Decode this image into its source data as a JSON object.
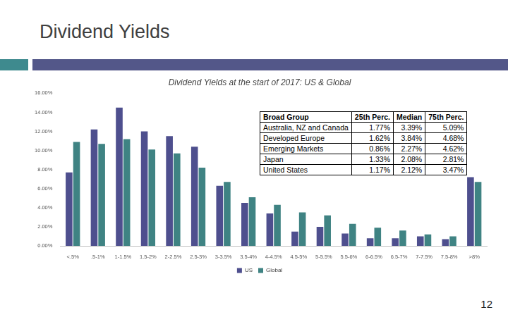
{
  "slide": {
    "title": "Dividend Yields",
    "page_number": "12"
  },
  "chart_data": {
    "type": "bar",
    "title": "Dividend Yields at the start of 2017: US & Global",
    "categories": [
      "<.5%",
      ".5-1%",
      "1-1.5%",
      "1.5-2%",
      "2-2.5%",
      "2.5-3%",
      "3-3.5%",
      "3.5-4%",
      "4-4.5%",
      "4.5-5%",
      "5-5.5%",
      "5.5-6%",
      "6-6.5%",
      "6.5-7%",
      "7-7.5%",
      "7.5-8%",
      ">8%"
    ],
    "series": [
      {
        "name": "US",
        "color": "#4e4f8e",
        "values": [
          7.7,
          12.2,
          14.5,
          12.0,
          11.5,
          10.4,
          6.3,
          4.5,
          3.4,
          1.5,
          2.0,
          1.3,
          0.8,
          0.8,
          1.0,
          0.7,
          7.2
        ]
      },
      {
        "name": "Global",
        "color": "#3f8383",
        "values": [
          10.9,
          10.7,
          11.2,
          10.1,
          9.7,
          8.2,
          6.7,
          5.1,
          4.3,
          3.5,
          3.2,
          2.3,
          1.9,
          1.6,
          1.2,
          1.0,
          6.7
        ]
      }
    ],
    "ylim": [
      0,
      16
    ],
    "yticks": [
      {
        "value": 0,
        "label": "0.00%"
      },
      {
        "value": 2,
        "label": "2.00%"
      },
      {
        "value": 4,
        "label": "4.00%"
      },
      {
        "value": 6,
        "label": "6.00%"
      },
      {
        "value": 8,
        "label": "8.00%"
      },
      {
        "value": 10,
        "label": "10.00%"
      },
      {
        "value": 12,
        "label": "12.00%"
      },
      {
        "value": 14,
        "label": "14.00%"
      },
      {
        "value": 16,
        "label": "16.00%"
      }
    ],
    "grid": false,
    "legend": "bottom"
  },
  "table": {
    "columns": [
      "Broad Group",
      "25th Perc.",
      "Median",
      "75th Perc."
    ],
    "rows": [
      [
        "Australia, NZ and Canada",
        "1.77%",
        "3.39%",
        "5.09%"
      ],
      [
        "Developed Europe",
        "1.62%",
        "3.84%",
        "4.68%"
      ],
      [
        "Emerging Markets",
        "0.86%",
        "2.27%",
        "4.62%"
      ],
      [
        "Japan",
        "1.33%",
        "2.08%",
        "2.81%"
      ],
      [
        "United States",
        "1.17%",
        "2.12%",
        "3.47%"
      ]
    ]
  }
}
